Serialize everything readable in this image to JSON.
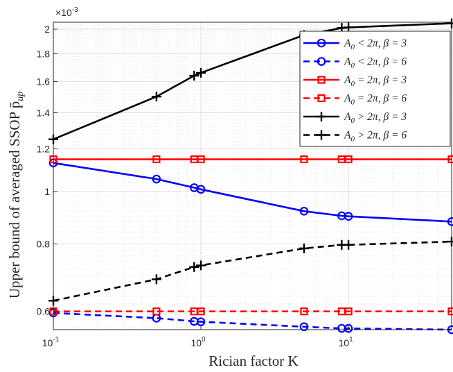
{
  "chart_data": {
    "type": "line",
    "xlabel": "Rician factor K",
    "ylabel": "Upper bound of averaged SSOP p̄",
    "ylabel_sub": "up",
    "y_multiplier": "×10",
    "y_multiplier_exp": "-3",
    "x_scale": "log",
    "y_scale": "log",
    "xlim": [
      0.1,
      50
    ],
    "ylim": [
      0.555,
      2.06
    ],
    "x_tick_labels": [
      {
        "value": 0.1,
        "base": "10",
        "exp": "-1"
      },
      {
        "value": 1,
        "base": "10",
        "exp": "0"
      },
      {
        "value": 10,
        "base": "10",
        "exp": "1"
      }
    ],
    "y_ticks": [
      0.6,
      0.8,
      1,
      1.2,
      1.4,
      1.6,
      1.8,
      2
    ],
    "y_tick_labels": [
      "0.6",
      "0.8",
      "1",
      "1.2",
      "1.4",
      "1.6",
      "1.8",
      "2"
    ],
    "grid": true,
    "legend_position": "top-right",
    "x": [
      0.1,
      0.5,
      0.9,
      1,
      5,
      9,
      10,
      50
    ],
    "series": [
      {
        "name": "A0 < 2π, β = 3",
        "legend": {
          "a": "A",
          "sub": "0",
          "rel": " < 2π, ",
          "b": "β",
          "eq": " = 3"
        },
        "color": "#0000ff",
        "dash": "solid",
        "marker": "circle",
        "values": [
          1.13,
          1.055,
          1.017,
          1.01,
          0.92,
          0.902,
          0.9,
          0.88
        ]
      },
      {
        "name": "A0 < 2π, β = 6",
        "legend": {
          "a": "A",
          "sub": "0",
          "rel": " < 2π, ",
          "b": "β",
          "eq": " = 6"
        },
        "color": "#0000ff",
        "dash": "dashed",
        "marker": "circle",
        "values": [
          0.596,
          0.583,
          0.575,
          0.574,
          0.562,
          0.558,
          0.558,
          0.555
        ]
      },
      {
        "name": "A0 = 2π, β = 3",
        "legend": {
          "a": "A",
          "sub": "0",
          "rel": " = 2π, ",
          "b": "β",
          "eq": " = 3"
        },
        "color": "#ff0000",
        "dash": "solid",
        "marker": "square",
        "values": [
          1.148,
          1.148,
          1.148,
          1.148,
          1.148,
          1.148,
          1.148,
          1.148
        ]
      },
      {
        "name": "A0 = 2π, β = 6",
        "legend": {
          "a": "A",
          "sub": "0",
          "rel": " = 2π, ",
          "b": "β",
          "eq": " = 6"
        },
        "color": "#ff0000",
        "dash": "dashed",
        "marker": "square",
        "values": [
          0.6,
          0.6,
          0.6,
          0.6,
          0.6,
          0.6,
          0.6,
          0.6
        ]
      },
      {
        "name": "A0 > 2π, β = 3",
        "legend": {
          "a": "A",
          "sub": "0",
          "rel": " > 2π, ",
          "b": "β",
          "eq": " = 3"
        },
        "color": "#000000",
        "dash": "solid",
        "marker": "plus",
        "values": [
          1.25,
          1.5,
          1.64,
          1.66,
          1.95,
          2.01,
          2.015,
          2.05
        ]
      },
      {
        "name": "A0 > 2π, β = 6",
        "legend": {
          "a": "A",
          "sub": "0",
          "rel": " > 2π, ",
          "b": "β",
          "eq": " = 6"
        },
        "color": "#000000",
        "dash": "dashed",
        "marker": "plus",
        "values": [
          0.628,
          0.688,
          0.725,
          0.73,
          0.785,
          0.797,
          0.797,
          0.808
        ]
      }
    ]
  }
}
